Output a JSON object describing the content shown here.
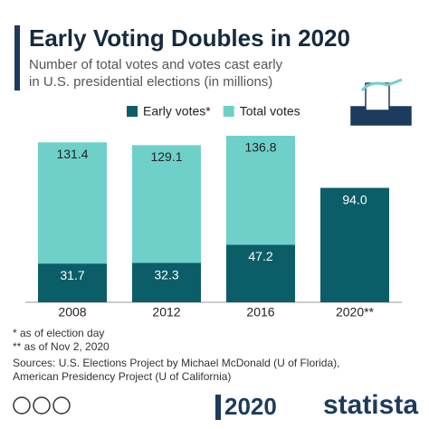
{
  "chart_data": {
    "type": "bar",
    "barmode": "overlay",
    "title": "Early Voting Doubles in 2020",
    "subtitle": [
      "Number of total votes and votes cast early",
      "in U.S. presidential elections (in millions)"
    ],
    "categories": [
      "2008",
      "2012",
      "2016",
      "2020**"
    ],
    "series": [
      {
        "name": "Total votes",
        "color": "#6fd0c9",
        "values": [
          131.4,
          129.1,
          136.8,
          null
        ]
      },
      {
        "name": "Early votes*",
        "color": "#0b5e68",
        "values": [
          31.7,
          32.3,
          47.2,
          94.0
        ],
        "value_labels": [
          "31.7",
          "32.3",
          "47.2",
          "94.0"
        ]
      }
    ],
    "notes": [
      "*   as of election day",
      "** as of Nov 2, 2020",
      "Sources: U.S. Elections Project by Michael McDonald (U of Florida),",
      "American Presidency Project (U of California)"
    ]
  },
  "footer": {
    "logo": "2020",
    "brand": "statista"
  }
}
